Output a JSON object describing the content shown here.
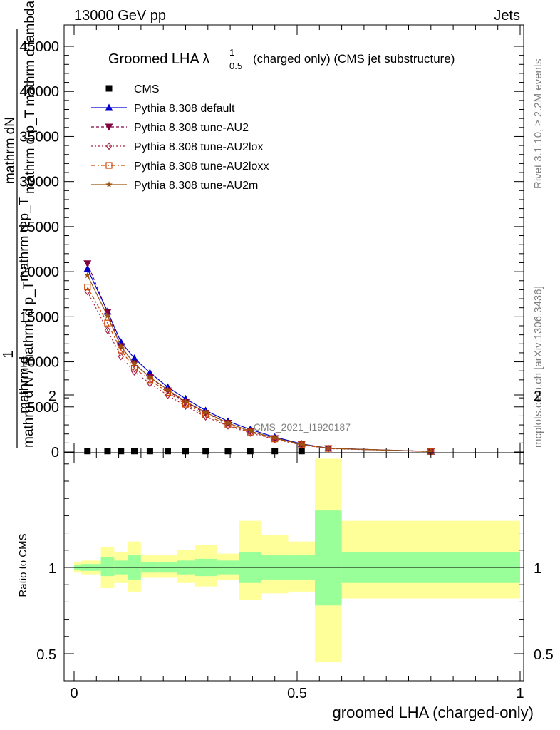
{
  "header": {
    "left": "13000 GeV pp",
    "right": "Jets"
  },
  "side": {
    "rivet": "Rivet 3.1.10, ≥ 2.2M events",
    "mcplots": "mcplots.cern.ch [arXiv:1306.3436]"
  },
  "title": {
    "main": "Groomed LHA λ",
    "sup": "1",
    "sub": "0.5",
    "rest": "(charged only) (CMS jet substructure)"
  },
  "analysis_tag": "CMS_2021_I1920187",
  "ylabel_main": {
    "one": "1",
    "line1": "mathrm dN",
    "line2": "mathrm d p_T mathrm d lambda",
    "line3": "mathrm d N / mathrm d p_T",
    "line4": "mathrm d p_T",
    "line5": "mathrm d"
  },
  "ylabel_ratio": "Ratio to CMS",
  "xlabel": "groomed LHA (charged-only)",
  "colors": {
    "cms": "#000000",
    "default": "#0000cc",
    "au2": "#800040",
    "au2lox": "#aa2244",
    "au2loxx": "#cc4400",
    "au2m": "#995511",
    "band_inner": "#99ff99",
    "band_outer": "#ffff99"
  },
  "chart_data": [
    {
      "type": "line",
      "title": "Groomed LHA λ 1 0.5 (charged only) (CMS jet substructure)",
      "xlim": [
        0,
        1
      ],
      "ylim": [
        0,
        45000
      ],
      "x_ticks": [
        "0",
        "0.5",
        "1"
      ],
      "y_ticks": [
        "0",
        "5000",
        "10000",
        "15000",
        "20000",
        "25000",
        "30000",
        "35000",
        "40000",
        "45000"
      ],
      "legend_position": "top-left",
      "series": [
        {
          "name": "CMS",
          "marker": "square",
          "x": [
            0.03,
            0.075,
            0.105,
            0.135,
            0.17,
            0.21,
            0.25,
            0.295,
            0.345,
            0.395,
            0.45,
            0.51
          ],
          "y": [
            100,
            100,
            100,
            100,
            100,
            100,
            100,
            100,
            100,
            100,
            100,
            100
          ]
        },
        {
          "name": "Pythia 8.308 default",
          "marker": "triangle-up",
          "x": [
            0.03,
            0.075,
            0.105,
            0.135,
            0.17,
            0.21,
            0.25,
            0.295,
            0.345,
            0.395,
            0.45,
            0.51,
            0.57,
            0.8
          ],
          "y": [
            20300,
            15600,
            12200,
            10400,
            8800,
            7200,
            5900,
            4600,
            3400,
            2500,
            1650,
            900,
            420,
            60
          ]
        },
        {
          "name": "Pythia 8.308 tune-AU2",
          "marker": "triangle-down",
          "x": [
            0.03,
            0.075,
            0.105,
            0.135,
            0.17,
            0.21,
            0.25,
            0.295,
            0.345,
            0.395,
            0.45,
            0.51,
            0.57,
            0.8
          ],
          "y": [
            20900,
            15500,
            11700,
            9800,
            8300,
            6800,
            5500,
            4300,
            3200,
            2300,
            1500,
            850,
            400,
            55
          ]
        },
        {
          "name": "Pythia 8.308 tune-AU2lox",
          "marker": "diamond-open",
          "x": [
            0.03,
            0.075,
            0.105,
            0.135,
            0.17,
            0.21,
            0.25,
            0.295,
            0.345,
            0.395,
            0.45,
            0.51,
            0.57,
            0.8
          ],
          "y": [
            17800,
            13500,
            10600,
            8900,
            7600,
            6300,
            5100,
            3900,
            2900,
            2100,
            1400,
            780,
            370,
            50
          ]
        },
        {
          "name": "Pythia 8.308 tune-AU2loxx",
          "marker": "square-open",
          "x": [
            0.03,
            0.075,
            0.105,
            0.135,
            0.17,
            0.21,
            0.25,
            0.295,
            0.345,
            0.395,
            0.45,
            0.51,
            0.57,
            0.8
          ],
          "y": [
            18300,
            14300,
            11300,
            9300,
            8000,
            6600,
            5300,
            4100,
            3000,
            2200,
            1450,
            800,
            390,
            52
          ]
        },
        {
          "name": "Pythia 8.308 tune-AU2m",
          "marker": "star",
          "x": [
            0.03,
            0.075,
            0.105,
            0.135,
            0.17,
            0.21,
            0.25,
            0.295,
            0.345,
            0.395,
            0.45,
            0.51,
            0.57,
            0.8
          ],
          "y": [
            19600,
            15100,
            11700,
            9800,
            8300,
            6900,
            5600,
            4400,
            3200,
            2300,
            1550,
            860,
            410,
            56
          ]
        }
      ]
    },
    {
      "type": "area",
      "ylabel": "Ratio to CMS",
      "xlabel": "groomed LHA (charged-only)",
      "xlim": [
        0,
        1
      ],
      "ylim": [
        0.4,
        2.3
      ],
      "y_ticks": [
        "0.5",
        "1",
        "2"
      ],
      "reference_line": 1,
      "bins": {
        "edges": [
          0,
          0.015,
          0.06,
          0.09,
          0.12,
          0.15,
          0.19,
          0.23,
          0.27,
          0.32,
          0.37,
          0.42,
          0.48,
          0.54,
          0.6,
          1.0
        ],
        "inner_low": [
          0.985,
          0.98,
          0.95,
          0.96,
          0.93,
          0.97,
          0.97,
          0.96,
          0.95,
          0.96,
          0.91,
          0.93,
          0.93,
          0.78,
          0.91
        ],
        "inner_high": [
          1.015,
          1.02,
          1.06,
          1.04,
          1.07,
          1.03,
          1.03,
          1.04,
          1.05,
          1.04,
          1.09,
          1.07,
          1.07,
          1.33,
          1.09
        ],
        "outer_low": [
          0.97,
          0.96,
          0.88,
          0.91,
          0.86,
          0.94,
          0.94,
          0.91,
          0.89,
          0.93,
          0.81,
          0.85,
          0.86,
          0.45,
          0.82
        ],
        "outer_high": [
          1.03,
          1.04,
          1.12,
          1.09,
          1.15,
          1.07,
          1.07,
          1.1,
          1.13,
          1.08,
          1.27,
          1.19,
          1.15,
          1.63,
          1.27
        ]
      }
    }
  ]
}
